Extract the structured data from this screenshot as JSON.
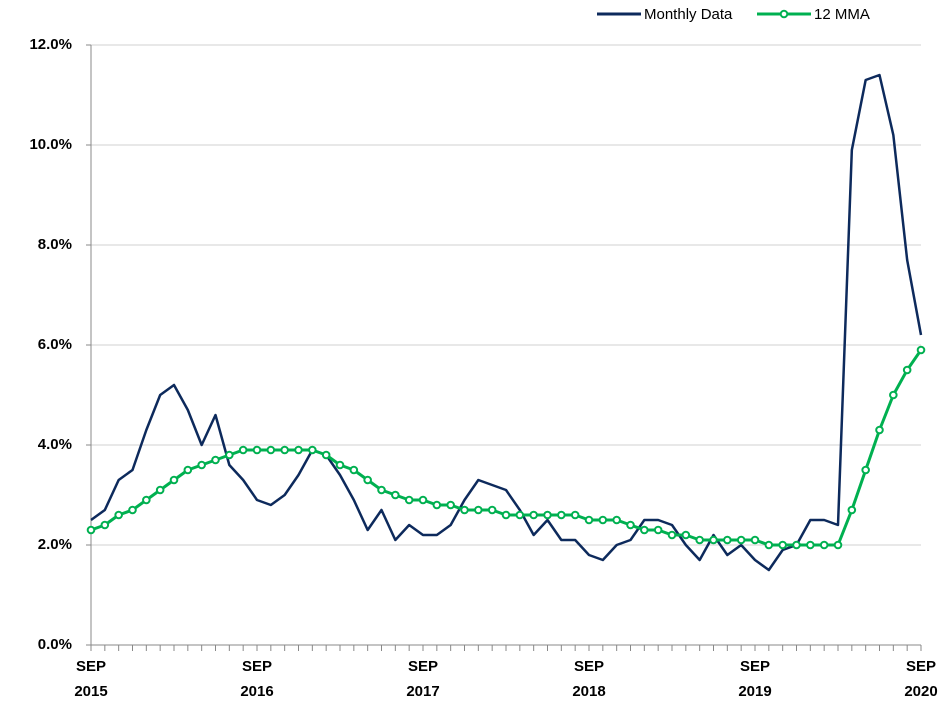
{
  "chart_data": {
    "type": "line",
    "categories": [
      "SEP 2015",
      null,
      null,
      null,
      null,
      null,
      null,
      null,
      null,
      null,
      null,
      null,
      "SEP 2016",
      null,
      null,
      null,
      null,
      null,
      null,
      null,
      null,
      null,
      null,
      null,
      "SEP 2017",
      null,
      null,
      null,
      null,
      null,
      null,
      null,
      null,
      null,
      null,
      null,
      "SEP 2018",
      null,
      null,
      null,
      null,
      null,
      null,
      null,
      null,
      null,
      null,
      null,
      "SEP 2019",
      null,
      null,
      null,
      null,
      null,
      null,
      null,
      null,
      null,
      null,
      null,
      "SEP 2020"
    ],
    "series": [
      {
        "name": "Monthly Data",
        "color": "#0d2a5c",
        "markers": false,
        "values": [
          2.5,
          2.7,
          3.3,
          3.5,
          4.3,
          5.0,
          5.2,
          4.7,
          4.0,
          4.6,
          3.6,
          3.3,
          2.9,
          2.8,
          3.0,
          3.4,
          3.9,
          3.8,
          3.4,
          2.9,
          2.3,
          2.7,
          2.1,
          2.4,
          2.2,
          2.2,
          2.4,
          2.9,
          3.3,
          3.2,
          3.1,
          2.7,
          2.2,
          2.5,
          2.1,
          2.1,
          1.8,
          1.7,
          2.0,
          2.1,
          2.5,
          2.5,
          2.4,
          2.0,
          1.7,
          2.2,
          1.8,
          2.0,
          1.7,
          1.5,
          1.9,
          2.0,
          2.5,
          2.5,
          2.4,
          9.9,
          11.3,
          11.4,
          10.2,
          7.7,
          6.2
        ]
      },
      {
        "name": "12 MMA",
        "color": "#00b050",
        "markers": true,
        "values": [
          2.3,
          2.4,
          2.6,
          2.7,
          2.9,
          3.1,
          3.3,
          3.5,
          3.6,
          3.7,
          3.8,
          3.9,
          3.9,
          3.9,
          3.9,
          3.9,
          3.9,
          3.8,
          3.6,
          3.5,
          3.3,
          3.1,
          3.0,
          2.9,
          2.9,
          2.8,
          2.8,
          2.7,
          2.7,
          2.7,
          2.6,
          2.6,
          2.6,
          2.6,
          2.6,
          2.6,
          2.5,
          2.5,
          2.5,
          2.4,
          2.3,
          2.3,
          2.2,
          2.2,
          2.1,
          2.1,
          2.1,
          2.1,
          2.1,
          2.0,
          2.0,
          2.0,
          2.0,
          2.0,
          2.0,
          2.7,
          3.5,
          4.3,
          5.0,
          5.5,
          5.9
        ]
      }
    ],
    "ylim": [
      0,
      12
    ],
    "yticks": [
      {
        "value": 0,
        "label": "0.0%"
      },
      {
        "value": 2,
        "label": "2.0%"
      },
      {
        "value": 4,
        "label": "4.0%"
      },
      {
        "value": 6,
        "label": "6.0%"
      },
      {
        "value": 8,
        "label": "8.0%"
      },
      {
        "value": 10,
        "label": "10.0%"
      },
      {
        "value": 12,
        "label": "12.0%"
      }
    ],
    "grid": true,
    "legend": "top-right"
  }
}
